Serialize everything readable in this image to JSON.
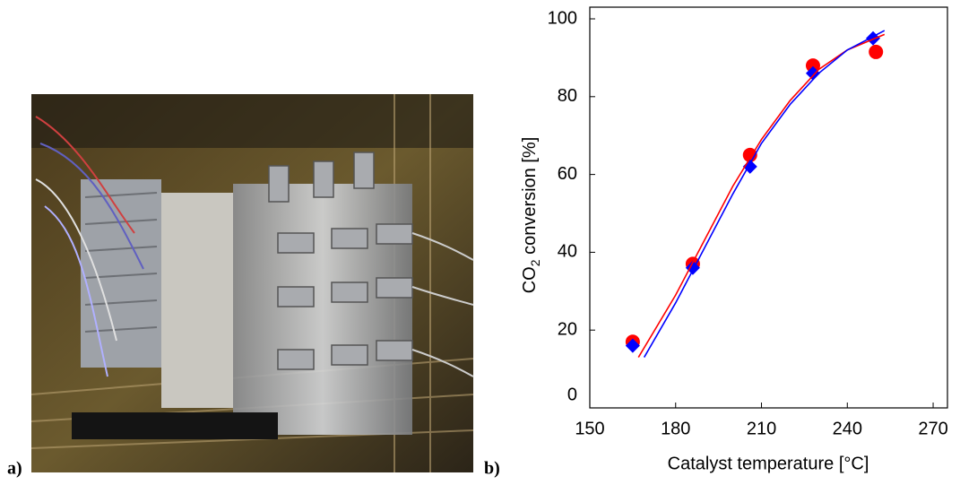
{
  "panel_labels": [
    "a)",
    "b)"
  ],
  "chart_data": {
    "type": "scatter",
    "x_label": "Catalyst temperature [°C]",
    "y_label": {
      "main": "CO",
      "subscript": "2",
      "rest": " conversion [%]"
    },
    "xlim": [
      150,
      275
    ],
    "ylim": [
      0,
      103
    ],
    "xticks": [
      150,
      180,
      210,
      240,
      270
    ],
    "yticks": [
      0,
      20,
      40,
      60,
      80,
      100
    ],
    "series": [
      {
        "color": "#ff0000",
        "marker": "circle",
        "x": [
          165,
          186,
          206,
          228,
          250
        ],
        "values": [
          17,
          37,
          65,
          88,
          91.5
        ]
      },
      {
        "color": "#0000ff",
        "marker": "diamond",
        "x": [
          165,
          186,
          206,
          228,
          249
        ],
        "values": [
          16,
          36,
          62,
          86,
          95
        ]
      },
      {
        "color": "#ff0000",
        "marker": "line",
        "x": [
          167,
          180,
          190,
          200,
          210,
          220,
          230,
          240,
          253
        ],
        "values": [
          13,
          29,
          43,
          57,
          69,
          79,
          87,
          92,
          96
        ]
      },
      {
        "color": "#0000ff",
        "marker": "line",
        "x": [
          169,
          180,
          190,
          200,
          210,
          220,
          230,
          240,
          253
        ],
        "values": [
          13,
          27,
          41,
          55,
          68,
          78,
          86,
          92,
          97
        ]
      }
    ]
  }
}
